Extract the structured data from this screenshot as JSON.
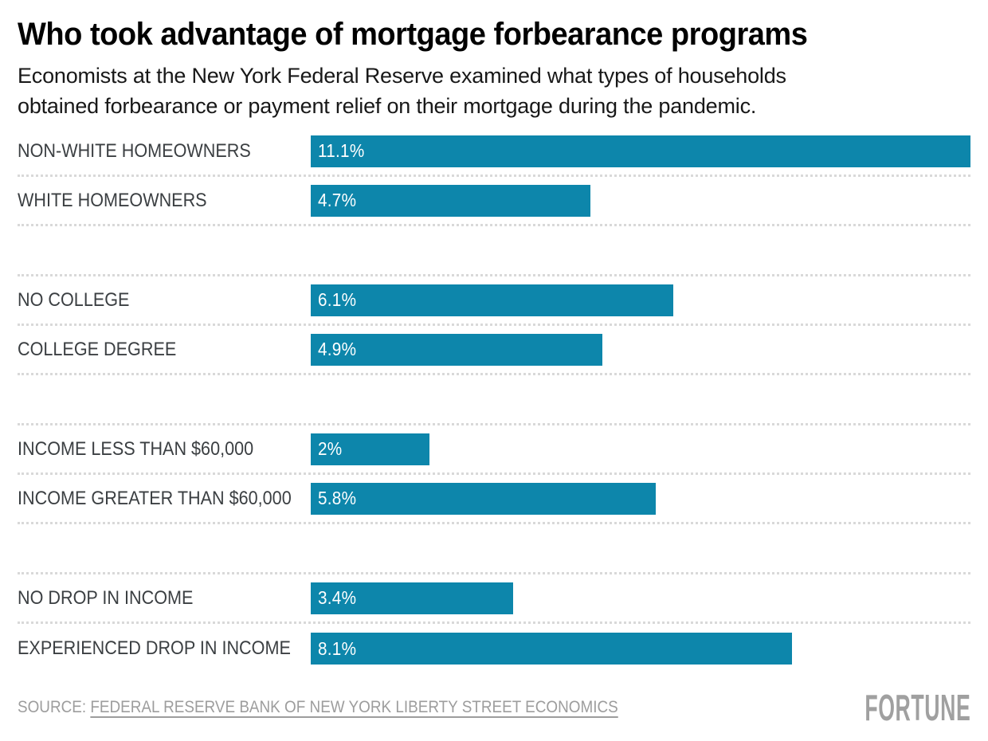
{
  "header": {
    "title": "Who took advantage of mortgage forbearance programs",
    "subtitle_line1": "Economists at the New York Federal Reserve examined what types of households",
    "subtitle_line2": "obtained forbearance or payment relief on their mortgage during the pandemic."
  },
  "chart_data": {
    "type": "bar",
    "orientation": "horizontal",
    "unit": "percent",
    "value_axis_max": 11.1,
    "bar_color": "#0d86ab",
    "grid": false,
    "legend": false,
    "categories": [
      "NON-WHITE HOMEOWNERS",
      "WHITE HOMEOWNERS",
      "NO COLLEGE",
      "COLLEGE DEGREE",
      "INCOME LESS THAN $60,000",
      "INCOME GREATER THAN $60,000",
      "NO DROP IN INCOME",
      "EXPERIENCED DROP IN INCOME"
    ],
    "values": [
      11.1,
      4.7,
      6.1,
      4.9,
      2,
      5.8,
      3.4,
      8.1
    ],
    "groups": [
      {
        "rows": [
          {
            "label": "NON-WHITE HOMEOWNERS",
            "value": 11.1,
            "value_label": "11.1%"
          },
          {
            "label": "WHITE HOMEOWNERS",
            "value": 4.7,
            "value_label": "4.7%"
          }
        ]
      },
      {
        "rows": [
          {
            "label": "NO COLLEGE",
            "value": 6.1,
            "value_label": "6.1%"
          },
          {
            "label": "COLLEGE DEGREE",
            "value": 4.9,
            "value_label": "4.9%"
          }
        ]
      },
      {
        "rows": [
          {
            "label": "INCOME LESS THAN $60,000",
            "value": 2,
            "value_label": "2%"
          },
          {
            "label": "INCOME GREATER THAN $60,000",
            "value": 5.8,
            "value_label": "5.8%"
          }
        ]
      },
      {
        "rows": [
          {
            "label": "NO DROP IN INCOME",
            "value": 3.4,
            "value_label": "3.4%"
          },
          {
            "label": "EXPERIENCED DROP IN INCOME",
            "value": 8.1,
            "value_label": "8.1%"
          }
        ]
      }
    ]
  },
  "footer": {
    "source_prefix": "SOURCE: ",
    "source_link": "FEDERAL RESERVE BANK OF NEW YORK LIBERTY STREET ECONOMICS",
    "logo": "FORTUNE"
  }
}
